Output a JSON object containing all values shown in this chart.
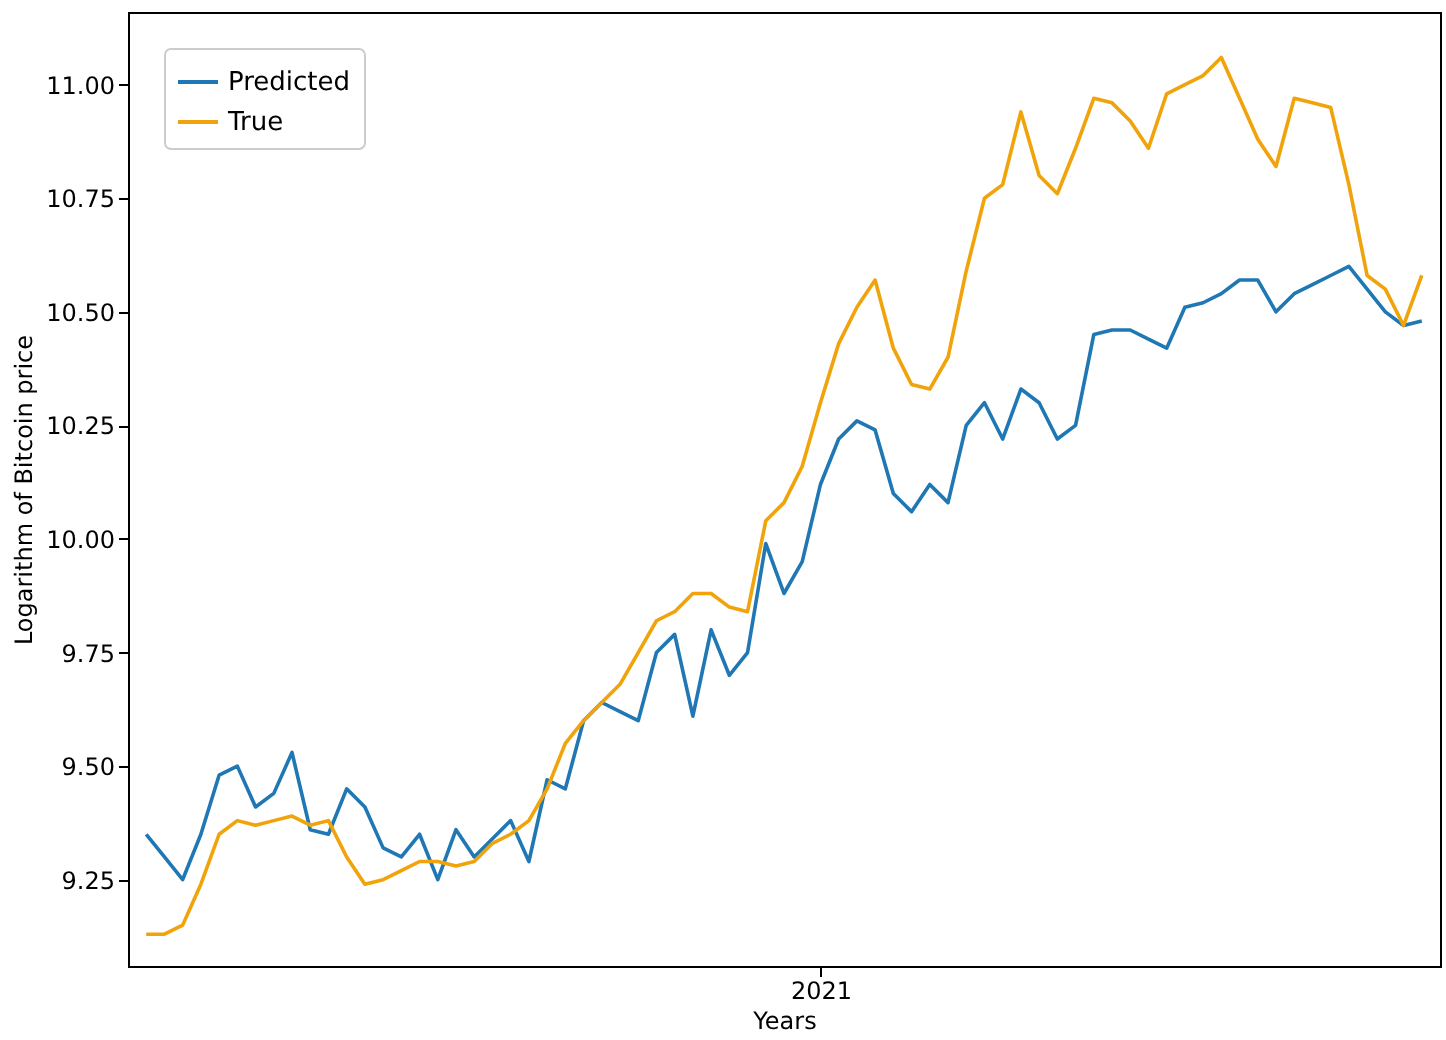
{
  "chart_data": {
    "type": "line",
    "xlabel": "Years",
    "ylabel": "Logarithm of Bitcoin price",
    "categories": [
      null,
      null,
      null,
      null,
      null,
      null,
      null,
      null,
      null,
      null,
      null,
      null,
      null,
      null,
      null,
      null,
      null,
      null,
      null,
      null,
      null,
      null,
      null,
      null,
      null,
      null,
      null,
      null,
      null,
      null,
      null,
      null,
      null,
      null,
      null,
      null,
      null,
      "2021",
      null,
      null,
      null,
      null,
      null,
      null,
      null,
      null,
      null,
      null,
      null,
      null,
      null,
      null,
      null,
      null,
      null,
      null,
      null,
      null,
      null,
      null,
      null,
      null,
      null,
      null,
      null,
      null,
      null,
      null,
      null,
      null,
      null
    ],
    "series": [
      {
        "name": "Predicted",
        "color": "#1f77b4",
        "values": [
          9.35,
          9.3,
          9.25,
          9.35,
          9.48,
          9.5,
          9.41,
          9.44,
          9.53,
          9.36,
          9.35,
          9.45,
          9.41,
          9.32,
          9.3,
          9.35,
          9.25,
          9.36,
          9.3,
          9.34,
          9.38,
          9.29,
          9.47,
          9.45,
          9.6,
          9.64,
          9.62,
          9.6,
          9.75,
          9.79,
          9.61,
          9.8,
          9.7,
          9.75,
          9.99,
          9.88,
          9.95,
          10.12,
          10.22,
          10.26,
          10.24,
          10.1,
          10.06,
          10.12,
          10.08,
          10.25,
          10.3,
          10.22,
          10.33,
          10.3,
          10.22,
          10.25,
          10.45,
          10.46,
          10.46,
          10.44,
          10.42,
          10.51,
          10.52,
          10.54,
          10.57,
          10.57,
          10.5,
          10.54,
          10.56,
          10.58,
          10.6,
          10.55,
          10.5,
          10.47,
          10.48
        ]
      },
      {
        "name": "True",
        "color": "#f0a30a",
        "values": [
          9.13,
          9.13,
          9.15,
          9.24,
          9.35,
          9.38,
          9.37,
          9.38,
          9.39,
          9.37,
          9.38,
          9.3,
          9.24,
          9.25,
          9.27,
          9.29,
          9.29,
          9.28,
          9.29,
          9.33,
          9.35,
          9.38,
          9.45,
          9.55,
          9.6,
          9.64,
          9.68,
          9.75,
          9.82,
          9.84,
          9.88,
          9.88,
          9.85,
          9.84,
          10.04,
          10.08,
          10.16,
          10.3,
          10.43,
          10.51,
          10.57,
          10.42,
          10.34,
          10.33,
          10.4,
          10.59,
          10.75,
          10.78,
          10.94,
          10.8,
          10.76,
          10.86,
          10.97,
          10.96,
          10.92,
          10.86,
          10.98,
          11.0,
          11.02,
          11.06,
          10.97,
          10.88,
          10.82,
          10.97,
          10.96,
          10.95,
          10.78,
          10.58,
          10.55,
          10.47,
          10.58
        ]
      }
    ],
    "ylim": [
      9.06,
      11.16
    ],
    "yticks": [
      {
        "value": 9.25,
        "label": "9.25"
      },
      {
        "value": 9.5,
        "label": "9.50"
      },
      {
        "value": 9.75,
        "label": "9.75"
      },
      {
        "value": 10.0,
        "label": "10.00"
      },
      {
        "value": 10.25,
        "label": "10.25"
      },
      {
        "value": 10.5,
        "label": "10.50"
      },
      {
        "value": 10.75,
        "label": "10.75"
      },
      {
        "value": 11.0,
        "label": "11.00"
      }
    ],
    "legend": "top left",
    "grid": false,
    "line_style": "solid"
  }
}
